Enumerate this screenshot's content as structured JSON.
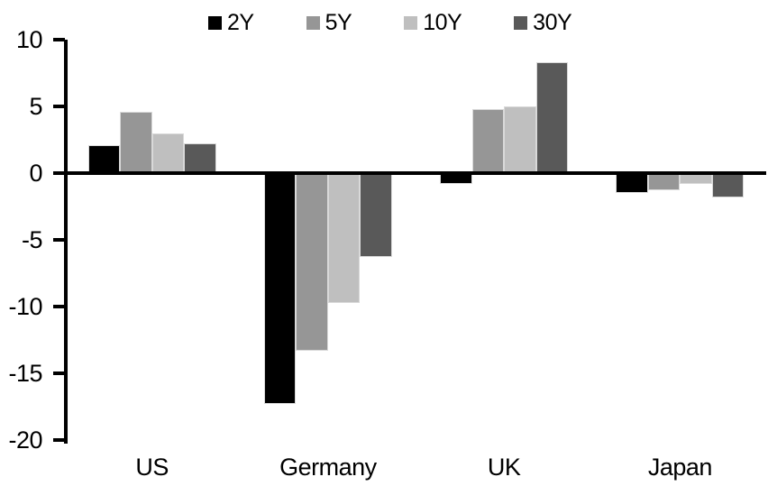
{
  "chart_data": {
    "type": "bar",
    "title": "",
    "xlabel": "",
    "ylabel": "",
    "categories": [
      "US",
      "Germany",
      "UK",
      "Japan"
    ],
    "series": [
      {
        "name": "2Y",
        "color": "#000000",
        "values": [
          2.1,
          -17.3,
          -0.8,
          -1.5
        ]
      },
      {
        "name": "5Y",
        "color": "#969696",
        "values": [
          4.6,
          -13.3,
          4.8,
          -1.3
        ]
      },
      {
        "name": "10Y",
        "color": "#bfbfbf",
        "values": [
          3.0,
          -9.7,
          5.0,
          -0.8
        ]
      },
      {
        "name": "30Y",
        "color": "#595959",
        "values": [
          2.2,
          -6.3,
          8.3,
          -1.8
        ]
      }
    ],
    "ylim": [
      -20,
      10
    ],
    "yticks": [
      10,
      5,
      0,
      -5,
      -10,
      -15,
      -20
    ],
    "grid": false,
    "legend_position": "top",
    "axis_color": "#000000",
    "background_color": "#ffffff"
  }
}
